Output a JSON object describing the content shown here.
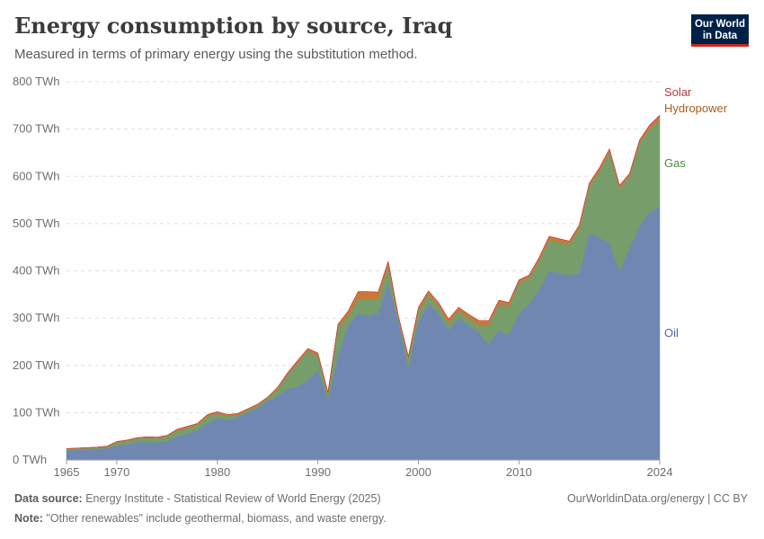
{
  "header": {
    "title": "Energy consumption by source, Iraq",
    "subtitle": "Measured in terms of primary energy using the substitution method."
  },
  "logo": {
    "line1": "Our World",
    "line2": "in Data"
  },
  "footer": {
    "source_label": "Data source:",
    "source_text": "Energy Institute - Statistical Review of World Energy (2025)",
    "credit": "OurWorldinData.org/energy | CC BY",
    "note_label": "Note:",
    "note_text": "\"Other renewables\" include geothermal, biomass, and waste energy."
  },
  "colors": {
    "oil": "#7087b2",
    "gas": "#779d6a",
    "hydropower": "#c8793a",
    "solar": "#c2353c",
    "grid": "#dddddd",
    "axis": "#999999"
  },
  "chart_data": {
    "type": "area",
    "stacked": true,
    "title": "Energy consumption by source, Iraq",
    "ylabel": "TWh",
    "ylim": [
      0,
      800
    ],
    "yticks": [
      0,
      100,
      200,
      300,
      400,
      500,
      600,
      700,
      800
    ],
    "ytick_labels": [
      "0 TWh",
      "100 TWh",
      "200 TWh",
      "300 TWh",
      "400 TWh",
      "500 TWh",
      "600 TWh",
      "700 TWh",
      "800 TWh"
    ],
    "xlim": [
      1965,
      2024
    ],
    "xticks": [
      1965,
      1970,
      1980,
      1990,
      2000,
      2010,
      2024
    ],
    "x": [
      1965,
      1966,
      1967,
      1968,
      1969,
      1970,
      1971,
      1972,
      1973,
      1974,
      1975,
      1976,
      1977,
      1978,
      1979,
      1980,
      1981,
      1982,
      1983,
      1984,
      1985,
      1986,
      1987,
      1988,
      1989,
      1990,
      1991,
      1992,
      1993,
      1994,
      1995,
      1996,
      1997,
      1998,
      1999,
      2000,
      2001,
      2002,
      2003,
      2004,
      2005,
      2006,
      2007,
      2008,
      2009,
      2010,
      2011,
      2012,
      2013,
      2014,
      2015,
      2016,
      2017,
      2018,
      2019,
      2020,
      2021,
      2022,
      2023,
      2024
    ],
    "series": [
      {
        "name": "Oil",
        "values": [
          20,
          21,
          22,
          23,
          25,
          30,
          33,
          38,
          38,
          37,
          40,
          50,
          56,
          62,
          78,
          88,
          85,
          90,
          100,
          110,
          125,
          135,
          150,
          155,
          170,
          190,
          130,
          220,
          285,
          310,
          305,
          310,
          375,
          295,
          195,
          295,
          330,
          310,
          275,
          300,
          285,
          270,
          245,
          275,
          265,
          310,
          330,
          360,
          400,
          395,
          390,
          395,
          480,
          470,
          460,
          400,
          450,
          495,
          525,
          535
        ]
      },
      {
        "name": "Gas",
        "values": [
          3,
          3,
          3,
          3,
          3,
          7,
          7,
          7,
          9,
          9,
          10,
          12,
          12,
          12,
          14,
          10,
          8,
          5,
          5,
          5,
          5,
          15,
          30,
          50,
          60,
          30,
          10,
          60,
          20,
          30,
          35,
          30,
          35,
          5,
          20,
          20,
          20,
          15,
          15,
          15,
          15,
          15,
          40,
          55,
          60,
          65,
          55,
          60,
          65,
          65,
          65,
          95,
          100,
          140,
          190,
          175,
          150,
          175,
          175,
          185
        ]
      },
      {
        "name": "Hydropower",
        "values": [
          1,
          1,
          1,
          1,
          1,
          2,
          2,
          2,
          2,
          2,
          2,
          3,
          3,
          3,
          4,
          4,
          3,
          3,
          3,
          3,
          3,
          4,
          5,
          6,
          6,
          6,
          3,
          7,
          10,
          16,
          16,
          15,
          10,
          5,
          4,
          8,
          8,
          8,
          8,
          8,
          8,
          10,
          10,
          8,
          8,
          6,
          6,
          8,
          8,
          8,
          8,
          7,
          6,
          8,
          8,
          6,
          6,
          7,
          8,
          8
        ]
      },
      {
        "name": "Solar",
        "values": [
          0,
          0,
          0,
          0,
          0,
          0,
          0,
          0,
          0,
          0,
          0,
          0,
          0,
          0,
          0,
          0,
          0,
          0,
          0,
          0,
          0,
          0,
          0,
          0,
          0,
          0,
          0,
          0,
          0,
          0,
          0,
          0,
          0,
          0,
          0,
          0,
          0,
          0,
          0,
          0,
          0,
          0,
          0,
          0,
          0,
          0,
          0,
          0,
          0,
          0,
          0,
          0,
          0,
          0,
          0,
          0,
          0.5,
          0.5,
          1,
          1.5
        ]
      }
    ],
    "legend": [
      "Solar",
      "Hydropower",
      "Gas",
      "Oil"
    ]
  }
}
